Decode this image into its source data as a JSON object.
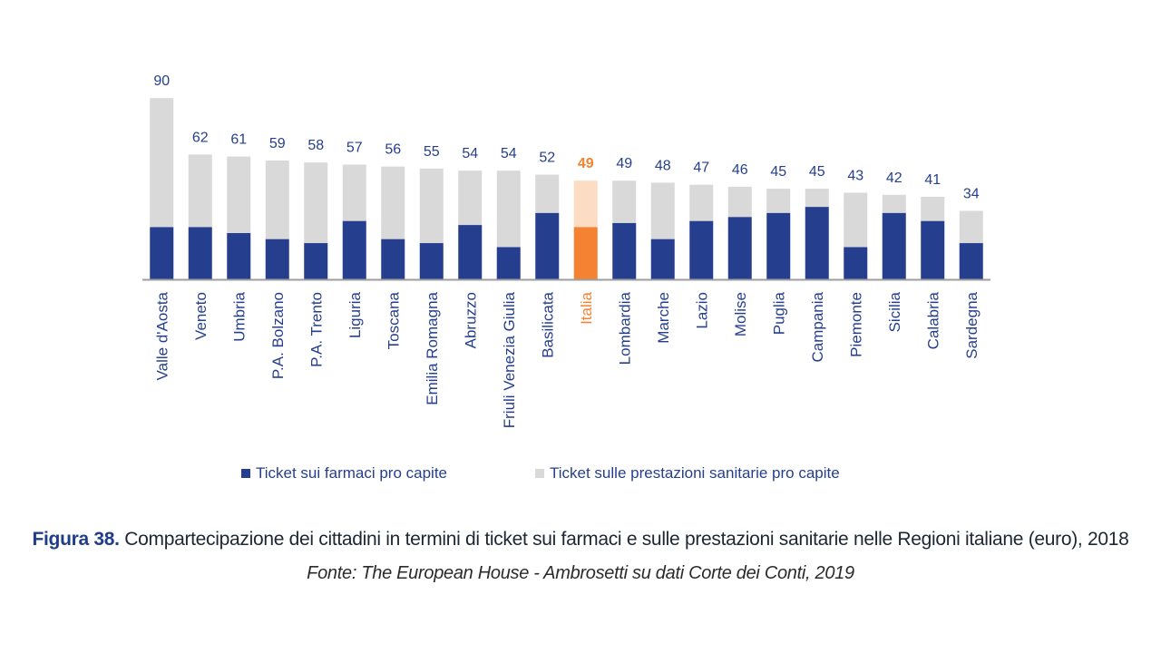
{
  "chart_data": {
    "type": "bar",
    "stacked": true,
    "categories": [
      "Valle d'Aosta",
      "Veneto",
      "Umbria",
      "P.A. Bolzano",
      "P.A. Trento",
      "Liguria",
      "Toscana",
      "Emilia Romagna",
      "Abruzzo",
      "Friuli Venezia Giulia",
      "Basilicata",
      "Italia",
      "Lombardia",
      "Marche",
      "Lazio",
      "Molise",
      "Puglia",
      "Campania",
      "Piemonte",
      "Sicilia",
      "Calabria",
      "Sardegna"
    ],
    "totals": [
      90,
      62,
      61,
      59,
      58,
      57,
      56,
      55,
      54,
      54,
      52,
      49,
      49,
      48,
      47,
      46,
      45,
      45,
      43,
      42,
      41,
      34
    ],
    "series": [
      {
        "name": "Ticket sui farmaci pro capite",
        "color": "#253f8e",
        "values": [
          26,
          26,
          23,
          20,
          18,
          29,
          20,
          18,
          27,
          16,
          33,
          26,
          28,
          20,
          29,
          31,
          33,
          36,
          16,
          33,
          29,
          18
        ]
      },
      {
        "name": "Ticket sulle prestazioni sanitarie pro capite",
        "color": "#d9d9d9",
        "values": [
          64,
          36,
          38,
          39,
          40,
          28,
          36,
          37,
          27,
          38,
          19,
          23,
          21,
          28,
          18,
          15,
          12,
          9,
          27,
          9,
          12,
          16
        ]
      }
    ],
    "highlight": {
      "category": "Italia",
      "bottom_color": "#f58231",
      "top_color": "#fcdcc2",
      "label_color": "#f58231"
    },
    "label_color": "#253f8e",
    "ylim": [
      0,
      90
    ],
    "grid": false,
    "legend_position": "bottom",
    "xlabel": "",
    "ylabel": ""
  },
  "caption": {
    "figure_label": "Figura 38.",
    "text": "Compartecipazione dei cittadini in termini di ticket sui farmaci e sulle prestazioni sanitarie nelle Regioni italiane (euro), 2018",
    "source": "Fonte: The European House - Ambrosetti su dati Corte dei Conti, 2019"
  }
}
